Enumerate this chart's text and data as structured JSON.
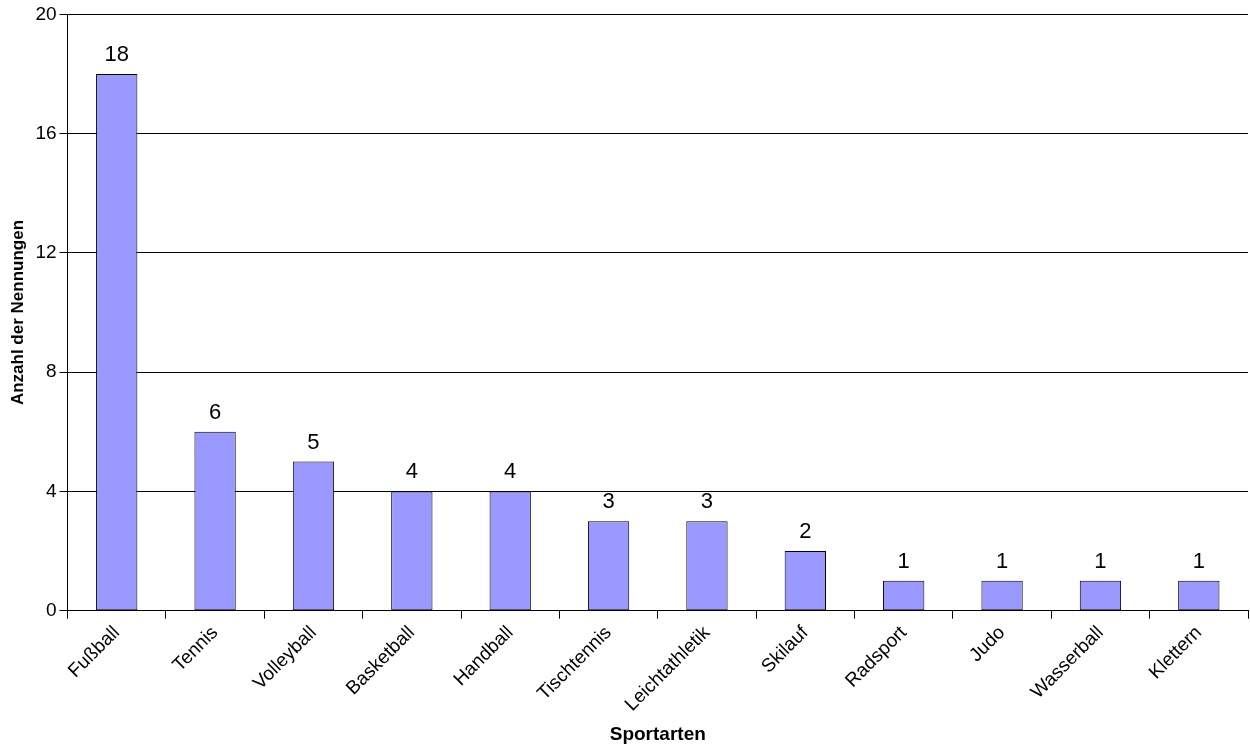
{
  "chart_data": {
    "type": "bar",
    "xlabel": "Sportarten",
    "ylabel": "Anzahl der Nennungen",
    "categories": [
      "Fußball",
      "Tennis",
      "Volleyball",
      "Basketball",
      "Handball",
      "Tischtennis",
      "Leichtathletik",
      "Skilauf",
      "Radsport",
      "Judo",
      "Wasserball",
      "Klettern"
    ],
    "values": [
      18,
      6,
      5,
      4,
      4,
      3,
      3,
      2,
      1,
      1,
      1,
      1
    ],
    "color": "#9999ff",
    "ylim": [
      0,
      20
    ],
    "yticks": [
      0,
      4,
      8,
      12,
      16,
      20
    ],
    "grid": "y",
    "data_labels": true,
    "legend": false
  }
}
